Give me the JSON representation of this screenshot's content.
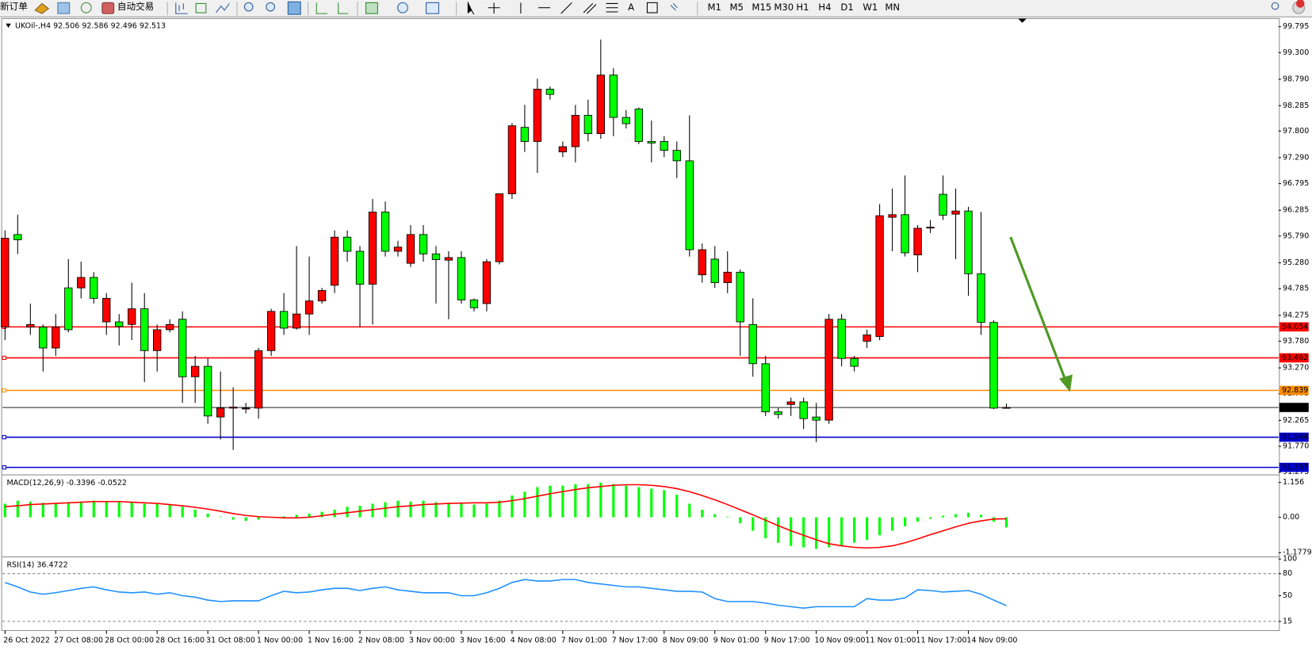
{
  "toolbar": {
    "new_order": "新订单",
    "auto_trading": "自动交易",
    "text_tool": "A",
    "timeframes": [
      "M1",
      "M5",
      "M15",
      "M30",
      "H1",
      "H4",
      "D1",
      "W1",
      "MN"
    ]
  },
  "chart_data": [
    {
      "type": "candlestick",
      "title": "UKOil-,H4  92.506 92.586 92.496 92.513",
      "categories": [
        "26 Oct 2022",
        null,
        null,
        null,
        "27 Oct 08:00",
        null,
        null,
        null,
        "28 Oct 00:00",
        null,
        null,
        null,
        "28 Oct 16:00",
        null,
        null,
        null,
        "31 Oct 08:00",
        null,
        null,
        null,
        "1 Nov 00:00",
        null,
        null,
        null,
        "1 Nov 16:00",
        null,
        null,
        null,
        "2 Nov 08:00",
        null,
        null,
        null,
        "3 Nov 00:00",
        null,
        null,
        null,
        "3 Nov 16:00",
        null,
        null,
        null,
        "4 Nov 08:00",
        null,
        null,
        null,
        "7 Nov 01:00",
        null,
        null,
        null,
        "7 Nov 17:00",
        null,
        null,
        null,
        "8 Nov 09:00",
        null,
        null,
        null,
        "9 Nov 01:00",
        null,
        null,
        null,
        "9 Nov 17:00",
        null,
        null,
        null,
        "10 Nov 09:00",
        null,
        null,
        null,
        "11 Nov 01:00",
        null,
        null,
        null,
        "11 Nov 17:00",
        null,
        null,
        null,
        "14 Nov 09:00",
        null,
        null,
        null
      ],
      "open": [
        94.05,
        95.82,
        94.05,
        94.05,
        93.65,
        94.8,
        94.8,
        95.0,
        94.15,
        94.15,
        94.1,
        94.4,
        93.6,
        94.0,
        94.2,
        93.1,
        93.3,
        92.33,
        92.5,
        92.5,
        92.5,
        93.6,
        94.35,
        94.03,
        94.3,
        94.55,
        94.85,
        95.77,
        95.5,
        94.87,
        96.25,
        95.5,
        95.27,
        95.82,
        95.45,
        95.33,
        95.38,
        94.57,
        94.5,
        95.3,
        96.6,
        97.87,
        97.6,
        98.6,
        97.4,
        97.5,
        98.1,
        97.75,
        98.87,
        98.06,
        98.22,
        97.6,
        97.6,
        97.43,
        97.23,
        95.05,
        95.35,
        94.9,
        95.1,
        94.1,
        93.35,
        92.43,
        92.57,
        92.62,
        92.33,
        92.27,
        94.2,
        93.45,
        93.78,
        93.87,
        96.15,
        96.2,
        95.43,
        95.95,
        96.59,
        96.21,
        96.27,
        95.07,
        94.14,
        92.506
      ],
      "high": [
        95.9,
        96.2,
        94.5,
        94.1,
        94.3,
        95.35,
        95.3,
        95.1,
        94.7,
        94.3,
        94.9,
        94.7,
        94.1,
        94.2,
        94.35,
        93.5,
        93.45,
        93.2,
        92.9,
        92.6,
        93.65,
        94.4,
        94.7,
        95.6,
        95.4,
        94.8,
        95.9,
        95.9,
        95.6,
        96.5,
        96.45,
        95.7,
        96.0,
        96.0,
        95.6,
        95.5,
        95.5,
        94.6,
        95.35,
        96.6,
        97.95,
        98.3,
        98.8,
        98.65,
        97.6,
        98.3,
        98.4,
        99.55,
        99.0,
        98.2,
        98.25,
        98.0,
        97.7,
        97.6,
        98.1,
        95.65,
        95.6,
        95.5,
        95.15,
        94.6,
        93.5,
        92.5,
        92.7,
        92.7,
        92.6,
        94.3,
        94.3,
        93.5,
        94.0,
        96.4,
        96.7,
        96.95,
        96.0,
        96.1,
        96.95,
        96.7,
        96.35,
        96.25,
        94.18,
        92.586
      ],
      "low": [
        93.8,
        95.45,
        93.9,
        93.2,
        93.5,
        93.95,
        94.6,
        94.5,
        93.9,
        93.7,
        93.8,
        93.0,
        93.2,
        93.95,
        92.6,
        92.6,
        92.2,
        91.9,
        91.7,
        92.4,
        92.3,
        93.5,
        93.9,
        94.0,
        93.9,
        94.5,
        94.7,
        95.3,
        94.05,
        94.1,
        95.4,
        95.4,
        95.2,
        95.3,
        94.5,
        94.2,
        94.5,
        94.35,
        94.35,
        95.25,
        96.5,
        97.4,
        97.0,
        98.4,
        97.3,
        97.2,
        97.6,
        97.65,
        97.7,
        97.85,
        97.55,
        97.2,
        97.3,
        96.9,
        95.4,
        94.9,
        94.8,
        94.7,
        93.5,
        93.1,
        92.35,
        92.3,
        92.35,
        92.1,
        91.85,
        92.2,
        93.3,
        93.2,
        93.65,
        93.8,
        95.5,
        95.4,
        95.1,
        95.85,
        96.1,
        95.35,
        94.65,
        93.9,
        92.48,
        92.496
      ],
      "close": [
        95.75,
        95.72,
        94.1,
        93.65,
        94.05,
        94.0,
        95.0,
        94.6,
        94.6,
        94.06,
        94.4,
        93.6,
        94.0,
        94.1,
        93.1,
        93.3,
        92.35,
        92.5,
        92.52,
        92.5,
        93.6,
        94.35,
        94.03,
        94.3,
        94.55,
        94.75,
        95.77,
        95.5,
        94.87,
        96.25,
        95.5,
        95.58,
        95.82,
        95.45,
        95.34,
        95.38,
        94.57,
        94.42,
        95.3,
        96.6,
        97.9,
        97.6,
        98.6,
        98.5,
        97.5,
        98.1,
        97.75,
        98.87,
        98.06,
        97.94,
        97.6,
        97.57,
        97.43,
        97.23,
        95.53,
        95.53,
        94.9,
        95.1,
        94.15,
        93.35,
        92.43,
        92.38,
        92.62,
        92.3,
        92.27,
        94.2,
        93.45,
        93.3,
        93.9,
        96.18,
        96.2,
        95.47,
        95.94,
        95.96,
        96.19,
        96.27,
        95.07,
        94.14,
        92.5,
        92.513
      ],
      "up_color": "#ff0000",
      "down_color": "#00ff00",
      "levels": [
        {
          "value": 94.054,
          "color": "#ff0000"
        },
        {
          "value": 93.462,
          "color": "#ff0000"
        },
        {
          "value": 92.839,
          "color": "#ff8c00"
        },
        {
          "value": 91.944,
          "color": "#0000cd"
        },
        {
          "value": 91.367,
          "color": "#0000cd"
        }
      ],
      "last": 92.513,
      "ylim": [
        91.24,
        99.95
      ],
      "yticks": [
        99.795,
        {
          "value": 99.3,
          "label": "99.300"
        },
        {
          "value": 98.79,
          "label": "98.790"
        },
        98.285,
        {
          "value": 97.8,
          "label": "97.800"
        },
        {
          "value": 97.29,
          "label": "97.290"
        },
        96.795,
        96.285,
        {
          "value": 95.79,
          "label": "95.790"
        },
        {
          "value": 95.28,
          "label": "95.280"
        },
        94.785,
        94.275,
        {
          "value": 93.78,
          "label": "93.780"
        },
        {
          "value": 93.27,
          "label": "93.270"
        },
        92.775,
        92.265,
        {
          "value": 91.77,
          "label": "91.770"
        },
        91.275
      ]
    },
    {
      "type": "macd",
      "title": "MACD(12,26,9) -0.3396 -0.0522",
      "series": [
        {
          "kind": "bar",
          "color": "#00ff00",
          "values": [
            0.45,
            0.55,
            0.52,
            0.48,
            0.46,
            0.5,
            0.52,
            0.55,
            0.52,
            0.5,
            0.48,
            0.45,
            0.44,
            0.4,
            0.35,
            0.25,
            0.12,
            0.02,
            -0.08,
            -0.12,
            -0.08,
            -0.02,
            0.03,
            0.08,
            0.12,
            0.18,
            0.25,
            0.35,
            0.38,
            0.45,
            0.5,
            0.55,
            0.52,
            0.55,
            0.5,
            0.48,
            0.45,
            0.42,
            0.45,
            0.55,
            0.72,
            0.85,
            1.0,
            1.05,
            1.05,
            1.1,
            1.1,
            1.15,
            1.1,
            1.05,
            1.0,
            0.95,
            0.9,
            0.75,
            0.45,
            0.25,
            0.1,
            0.02,
            -0.2,
            -0.45,
            -0.7,
            -0.85,
            -0.95,
            -1.0,
            -1.05,
            -1.0,
            -0.95,
            -0.85,
            -0.75,
            -0.6,
            -0.45,
            -0.3,
            -0.15,
            -0.05,
            0.05,
            0.1,
            0.15,
            0.08,
            -0.15,
            -0.34
          ]
        },
        {
          "kind": "line",
          "color": "#ff0000",
          "values": [
            0.35,
            0.38,
            0.42,
            0.44,
            0.46,
            0.48,
            0.5,
            0.52,
            0.52,
            0.52,
            0.5,
            0.48,
            0.46,
            0.42,
            0.38,
            0.33,
            0.27,
            0.2,
            0.12,
            0.06,
            0.02,
            0,
            -0.02,
            -0.02,
            0,
            0.05,
            0.1,
            0.15,
            0.2,
            0.25,
            0.3,
            0.35,
            0.38,
            0.42,
            0.44,
            0.46,
            0.47,
            0.48,
            0.48,
            0.5,
            0.55,
            0.62,
            0.7,
            0.78,
            0.85,
            0.92,
            0.98,
            1.02,
            1.06,
            1.08,
            1.08,
            1.06,
            1.02,
            0.95,
            0.85,
            0.72,
            0.58,
            0.42,
            0.25,
            0.08,
            -0.1,
            -0.28,
            -0.45,
            -0.6,
            -0.75,
            -0.88,
            -0.95,
            -1.0,
            -1.02,
            -1.0,
            -0.95,
            -0.85,
            -0.72,
            -0.58,
            -0.45,
            -0.32,
            -0.2,
            -0.12,
            -0.06,
            -0.05
          ]
        }
      ],
      "ylim": [
        -1.29,
        1.38
      ],
      "yticks": [
        1.156,
        {
          "value": 0,
          "label": "0.00"
        },
        -1.1779
      ]
    },
    {
      "type": "line",
      "title": "RSI(14) 36.4722",
      "series": [
        {
          "color": "#1e90ff",
          "values": [
            68,
            62,
            55,
            52,
            54,
            57,
            60,
            62,
            58,
            55,
            54,
            55,
            52,
            54,
            50,
            48,
            44,
            42,
            43,
            43,
            43,
            50,
            56,
            54,
            55,
            58,
            60,
            60,
            57,
            60,
            62,
            58,
            56,
            54,
            54,
            54,
            50,
            50,
            54,
            60,
            68,
            72,
            70,
            70,
            72,
            72,
            68,
            66,
            64,
            62,
            62,
            60,
            58,
            56,
            56,
            55,
            46,
            42,
            42,
            42,
            40,
            37,
            35,
            33,
            35,
            35,
            35,
            35,
            46,
            44,
            44,
            47,
            58,
            57,
            55,
            56,
            57,
            52,
            44,
            36.4722
          ]
        }
      ],
      "levels": [
        80,
        15
      ],
      "ylim": [
        3.6,
        101.7
      ],
      "yticks": [
        100,
        80,
        50,
        15
      ]
    }
  ]
}
